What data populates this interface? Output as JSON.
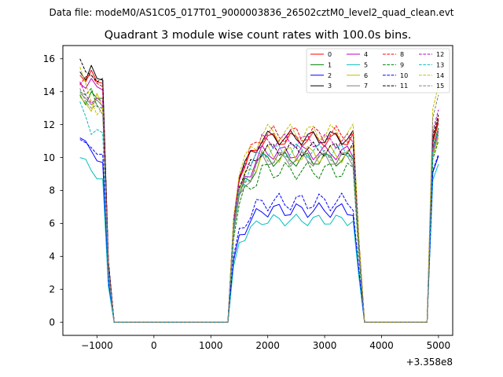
{
  "chart_data": {
    "type": "line",
    "suptitle": "Data file: modeM0/AS1C05_017T01_9000003836_26502cztM0_level2_quad_clean.evt",
    "title": "Quadrant 3 module wise count rates with 100.0s bins.",
    "xlabel": "",
    "ylabel": "",
    "x_offset_label": "+3.358e8",
    "xlim": [
      -1600,
      5250
    ],
    "ylim": [
      -0.8,
      16.8
    ],
    "xticks": [
      -1000,
      0,
      1000,
      2000,
      3000,
      4000,
      5000
    ],
    "xtick_labels": [
      "−1000",
      "0",
      "1000",
      "2000",
      "3000",
      "4000",
      "5000"
    ],
    "yticks": [
      0,
      2,
      4,
      6,
      8,
      10,
      12,
      14,
      16
    ],
    "ytick_labels": [
      "0",
      "2",
      "4",
      "6",
      "8",
      "10",
      "12",
      "14",
      "16"
    ],
    "grid": false,
    "legend_placement": "top-right",
    "legend_columns": 4,
    "series": [
      {
        "name": "0",
        "color": "#ff0000",
        "style": "solid",
        "plateau": 11.1,
        "spread": 0.5,
        "start": [
          15.0,
          14.6,
          15.3,
          14.6,
          14.5
        ],
        "end": 12.1
      },
      {
        "name": "1",
        "color": "#008000",
        "style": "solid",
        "plateau": 9.9,
        "spread": 0.5,
        "start": [
          13.8,
          13.2,
          14.0,
          13.6,
          13.6
        ],
        "end": 11.8
      },
      {
        "name": "2",
        "color": "#0000ff",
        "style": "solid",
        "plateau": 6.8,
        "spread": 0.5,
        "start": [
          11.2,
          11.0,
          10.4,
          9.8,
          9.7
        ],
        "end": 10.1
      },
      {
        "name": "3",
        "color": "#000000",
        "style": "solid",
        "plateau": 11.2,
        "spread": 0.5,
        "start": [
          15.2,
          14.7,
          15.6,
          14.8,
          14.7
        ],
        "end": 12.3
      },
      {
        "name": "4",
        "color": "#bf00bf",
        "style": "solid",
        "plateau": 10.3,
        "spread": 0.5,
        "start": [
          14.5,
          14.2,
          14.8,
          14.3,
          14.1
        ],
        "end": 11.6
      },
      {
        "name": "5",
        "color": "#00bfbf",
        "style": "solid",
        "plateau": 6.2,
        "spread": 0.4,
        "start": [
          10.0,
          9.9,
          9.2,
          8.7,
          8.7
        ],
        "end": 9.6
      },
      {
        "name": "6",
        "color": "#bfbf00",
        "style": "solid",
        "plateau": 10.2,
        "spread": 0.6,
        "start": [
          13.7,
          13.3,
          12.8,
          13.9,
          13.0
        ],
        "end": 11.2
      },
      {
        "name": "7",
        "color": "#808080",
        "style": "solid",
        "plateau": 9.9,
        "spread": 0.5,
        "start": [
          13.9,
          13.6,
          13.2,
          13.5,
          13.1
        ],
        "end": 11.4
      },
      {
        "name": "8",
        "color": "#ff0000",
        "style": "dashed",
        "plateau": 11.4,
        "spread": 0.6,
        "start": [
          14.4,
          14.9,
          15.0,
          14.5,
          14.3
        ],
        "end": 12.4
      },
      {
        "name": "9",
        "color": "#008000",
        "style": "dashed",
        "plateau": 9.2,
        "spread": 0.6,
        "start": [
          14.0,
          13.8,
          14.2,
          13.1,
          13.0
        ],
        "end": 11.0
      },
      {
        "name": "10",
        "color": "#0000ff",
        "style": "dashed",
        "plateau": 7.3,
        "spread": 0.6,
        "start": [
          11.1,
          10.9,
          10.6,
          10.2,
          10.2
        ],
        "end": 10.2
      },
      {
        "name": "11",
        "color": "#000000",
        "style": "dashed",
        "plateau": 10.5,
        "spread": 0.5,
        "start": [
          16.0,
          15.2,
          15.0,
          14.6,
          14.8
        ],
        "end": 12.6
      },
      {
        "name": "12",
        "color": "#bf00bf",
        "style": "dashed",
        "plateau": 11.0,
        "spread": 0.5,
        "start": [
          14.6,
          13.8,
          13.3,
          13.6,
          13.4
        ],
        "end": 12.9
      },
      {
        "name": "13",
        "color": "#00bfbf",
        "style": "dashed",
        "plateau": 10.4,
        "spread": 0.5,
        "start": [
          13.4,
          12.5,
          11.4,
          11.7,
          11.5
        ],
        "end": 11.7
      },
      {
        "name": "14",
        "color": "#bfbf00",
        "style": "dashed",
        "plateau": 11.5,
        "spread": 0.6,
        "start": [
          15.5,
          14.5,
          13.4,
          12.6,
          13.0
        ],
        "end": 14.4
      },
      {
        "name": "15",
        "color": "#808080",
        "style": "dashed",
        "plateau": 10.0,
        "spread": 0.5,
        "start": [
          14.2,
          13.4,
          13.0,
          13.2,
          12.6
        ],
        "end": 13.8
      }
    ]
  }
}
